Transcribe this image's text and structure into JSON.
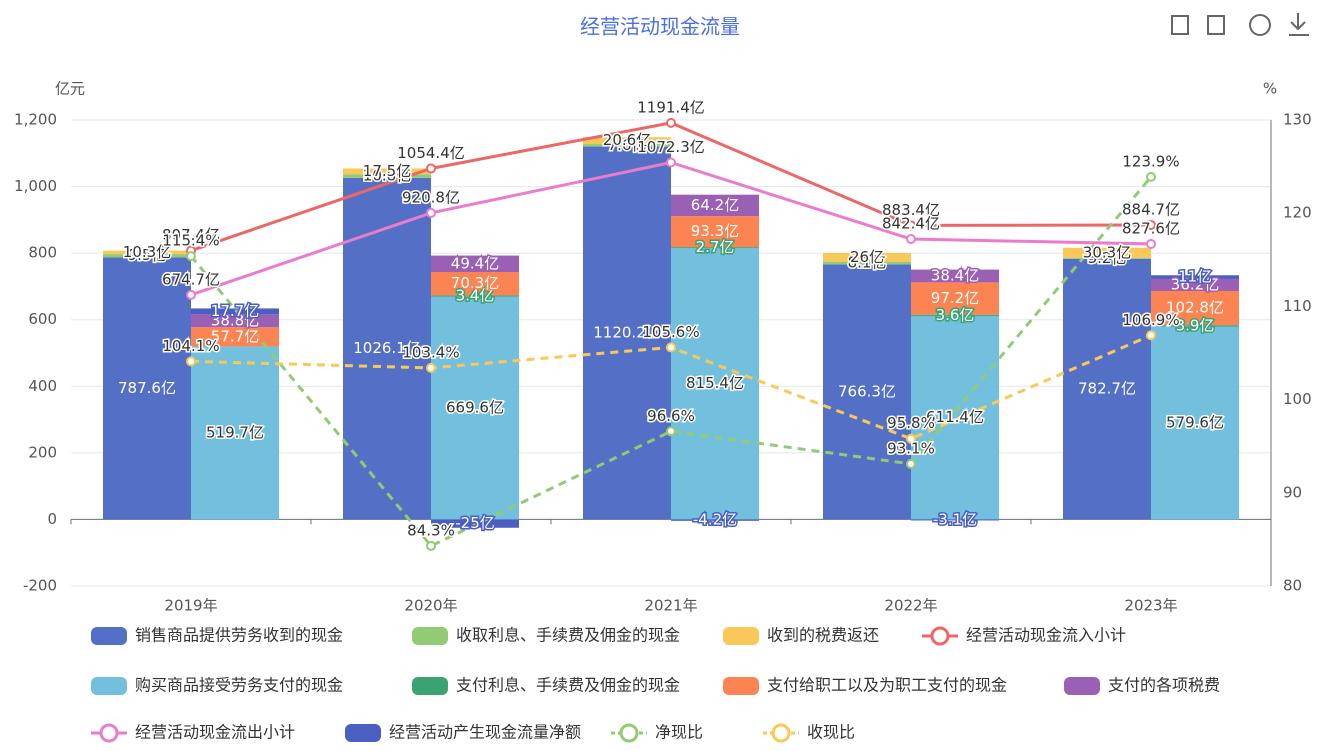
{
  "chart_data": {
    "type": "bar",
    "title": "经营活动现金流量",
    "categories": [
      "2019年",
      "2020年",
      "2021年",
      "2022年",
      "2023年"
    ],
    "ylabel": "亿元",
    "y2label": "%",
    "ylim": [
      -200,
      1200
    ],
    "yticks": [
      -200,
      0,
      200,
      400,
      600,
      800,
      {
        "value": 1000,
        "label": "1,000"
      },
      {
        "value": 1200,
        "label": "1,200"
      }
    ],
    "y2lim": [
      80,
      130
    ],
    "y2ticks": [
      80,
      90,
      100,
      110,
      120,
      130
    ],
    "grid": true,
    "series": [
      {
        "name": "销售商品提供劳务收到的现金",
        "type": "bar",
        "stack": "in",
        "color": "#5470c6",
        "values": [
          787.6,
          1026.1,
          1120.2,
          766.3,
          782.7
        ],
        "value_labels": [
          "787.6亿",
          "1026.1亿",
          "1120.2亿",
          "766.3亿",
          "782.7亿"
        ]
      },
      {
        "name": "收取利息、手续费及佣金的现金",
        "type": "bar",
        "stack": "in",
        "color": "#91cc75",
        "values": [
          9.5,
          10.8,
          7.6,
          8.1,
          3.2
        ],
        "value_labels": [
          "9.5亿",
          "10.8亿",
          "7.6亿",
          "8.1亿",
          "3.2亿"
        ]
      },
      {
        "name": "收到的税费返还",
        "type": "bar",
        "stack": "in",
        "color": "#fac858",
        "values": [
          10.3,
          17.5,
          20.6,
          26,
          30.3
        ],
        "value_labels": [
          "10.3亿",
          "17.5亿",
          "20.6亿",
          "26亿",
          "30.3亿"
        ]
      },
      {
        "name": "经营活动现金流入小计",
        "type": "line",
        "color": "#ee6666",
        "values": [
          807.4,
          1054.4,
          1191.4,
          883.4,
          884.7
        ],
        "value_labels": [
          "807.4亿",
          "1054.4亿",
          "1191.4亿",
          "883.4亿",
          "884.7亿"
        ]
      },
      {
        "name": "购买商品接受劳务支付的现金",
        "type": "bar",
        "stack": "out",
        "color": "#73c0de",
        "values": [
          519.7,
          669.6,
          815.4,
          611.4,
          579.6
        ],
        "value_labels": [
          "519.7亿",
          "669.6亿",
          "815.4亿",
          "611.4亿",
          "579.6亿"
        ]
      },
      {
        "name": "支付利息、手续费及佣金的现金",
        "type": "bar",
        "stack": "out",
        "color": "#3ba272",
        "values": [
          null,
          3.4,
          2.7,
          3.6,
          3.9
        ],
        "value_labels": [
          null,
          "3.4亿",
          "2.7亿",
          "3.6亿",
          "3.9亿"
        ]
      },
      {
        "name": "支付给职工以及为职工支付的现金",
        "type": "bar",
        "stack": "out",
        "color": "#fc8452",
        "values": [
          57.7,
          70.3,
          93.3,
          97.2,
          102.8
        ],
        "value_labels": [
          "57.7亿",
          "70.3亿",
          "93.3亿",
          "97.2亿",
          "102.8亿"
        ]
      },
      {
        "name": "支付的各项税费",
        "type": "bar",
        "stack": "out",
        "color": "#9a60b4",
        "values": [
          38.8,
          49.4,
          64.2,
          38.4,
          36.2
        ],
        "value_labels": [
          "38.8亿",
          "49.4亿",
          "64.2亿",
          "38.4亿",
          "36.2亿"
        ]
      },
      {
        "name": "经营活动现金流出小计",
        "type": "line",
        "color": "#ea7ccc",
        "values": [
          674.7,
          920.8,
          1072.3,
          842.4,
          827.6
        ],
        "value_labels": [
          "674.7亿",
          "920.8亿",
          "1072.3亿",
          "842.4亿",
          "827.6亿"
        ]
      },
      {
        "name": "经营活动产生现金流量净额",
        "type": "bar",
        "stack": "out",
        "color": "#4a5fc1",
        "values": [
          17.7,
          -25,
          -4.2,
          -3.1,
          11
        ],
        "value_labels": [
          "17.7亿",
          "-25亿",
          "-4.2亿",
          "-3.1亿",
          "11亿"
        ]
      },
      {
        "name": "净现比",
        "type": "line",
        "dashed": true,
        "axis": "y2",
        "color": "#91cc75",
        "values": [
          115.4,
          84.3,
          96.6,
          93.1,
          123.9
        ],
        "value_labels": [
          "115.4%",
          "84.3%",
          "96.6%",
          "93.1%",
          "123.9%"
        ]
      },
      {
        "name": "收现比",
        "type": "line",
        "dashed": true,
        "axis": "y2",
        "color": "#fac858",
        "values": [
          104.1,
          103.4,
          105.6,
          95.8,
          106.9
        ],
        "value_labels": [
          "104.1%",
          "103.4%",
          "105.6%",
          "95.8%",
          "106.9%"
        ]
      }
    ]
  }
}
